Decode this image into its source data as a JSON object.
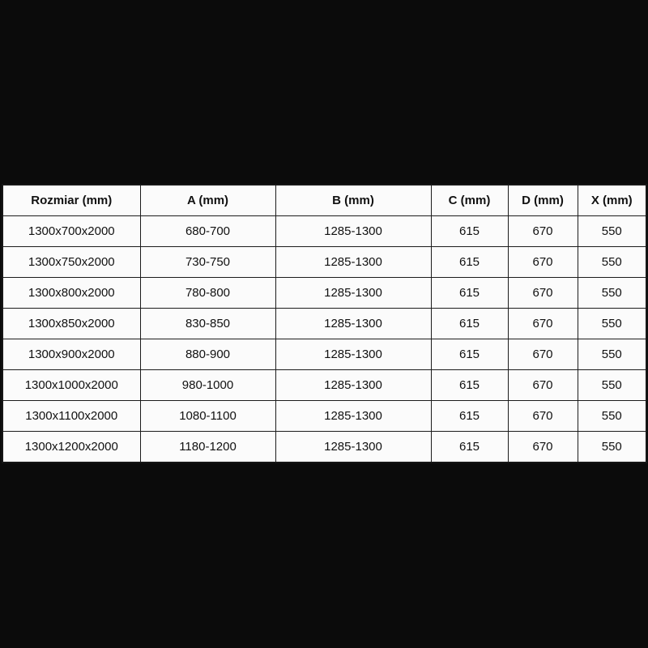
{
  "colors": {
    "page_background": "#0b0b0b",
    "cell_background": "#fbfbfb",
    "border": "#1c1c1c",
    "text": "#111111"
  },
  "table": {
    "headers": [
      "Rozmiar (mm)",
      "A (mm)",
      "B (mm)",
      "C (mm)",
      "D (mm)",
      "X (mm)"
    ],
    "rows": [
      [
        "1300x700x2000",
        "680-700",
        "1285-1300",
        "615",
        "670",
        "550"
      ],
      [
        "1300x750x2000",
        "730-750",
        "1285-1300",
        "615",
        "670",
        "550"
      ],
      [
        "1300x800x2000",
        "780-800",
        "1285-1300",
        "615",
        "670",
        "550"
      ],
      [
        "1300x850x2000",
        "830-850",
        "1285-1300",
        "615",
        "670",
        "550"
      ],
      [
        "1300x900x2000",
        "880-900",
        "1285-1300",
        "615",
        "670",
        "550"
      ],
      [
        "1300x1000x2000",
        "980-1000",
        "1285-1300",
        "615",
        "670",
        "550"
      ],
      [
        "1300x1100x2000",
        "1080-1100",
        "1285-1300",
        "615",
        "670",
        "550"
      ],
      [
        "1300x1200x2000",
        "1180-1200",
        "1285-1300",
        "615",
        "670",
        "550"
      ]
    ]
  }
}
